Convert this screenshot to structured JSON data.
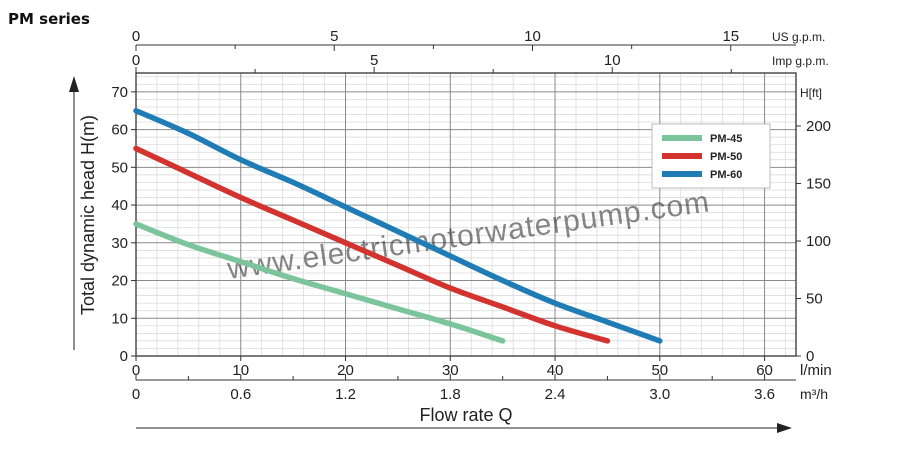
{
  "page_title": "PM series",
  "chart_data": {
    "type": "line",
    "ylabel": "Total dynamic head H(m)",
    "xlabel": "Flow rate Q",
    "watermark": "www.electricmotorwaterpump.com",
    "x_primary": {
      "unit": "l/min",
      "range": [
        0,
        63
      ],
      "ticks": [
        0,
        10,
        20,
        30,
        40,
        50,
        60
      ]
    },
    "x_m3h": {
      "unit": "m³/h",
      "ticks": [
        "0",
        "0.6",
        "1.2",
        "1.8",
        "2.4",
        "3.0",
        "3.6"
      ]
    },
    "x_us": {
      "unit": "US g.p.m.",
      "ticks": [
        "0",
        "5",
        "10",
        "15"
      ],
      "values": [
        0,
        5,
        10,
        15
      ],
      "per_lmin": 3.785
    },
    "x_imp": {
      "unit": "Imp g.p.m.",
      "ticks": [
        "0",
        "5",
        "10"
      ],
      "values": [
        0,
        5,
        10
      ],
      "per_lmin": 4.546
    },
    "y_left": {
      "unit": "m",
      "range": [
        0,
        75
      ],
      "ticks": [
        0,
        10,
        20,
        30,
        40,
        50,
        60,
        70
      ]
    },
    "y_right": {
      "unit": "H[ft]",
      "ticks": [
        "0",
        "50",
        "100",
        "150",
        "200"
      ],
      "values": [
        0,
        50,
        100,
        150,
        200
      ],
      "ft_per_m": 3.281
    },
    "grid": true,
    "legend_position": "top-right",
    "series": [
      {
        "name": "PM-45",
        "color": "#7cc59c",
        "x": [
          0,
          5,
          10,
          15,
          20,
          25,
          30,
          35
        ],
        "y": [
          35,
          29.5,
          25,
          20.5,
          16.5,
          12.5,
          8.5,
          4
        ]
      },
      {
        "name": "PM-50",
        "color": "#d2332f",
        "x": [
          0,
          5,
          10,
          15,
          20,
          25,
          30,
          35,
          40,
          45
        ],
        "y": [
          55,
          48.5,
          42,
          36,
          30,
          24,
          18,
          13,
          8,
          4
        ]
      },
      {
        "name": "PM-60",
        "color": "#1f7cb5",
        "x": [
          0,
          5,
          10,
          15,
          20,
          25,
          30,
          35,
          40,
          45,
          50
        ],
        "y": [
          65,
          59,
          52,
          46,
          39.5,
          33,
          26.5,
          20,
          14,
          9,
          4
        ]
      }
    ]
  }
}
